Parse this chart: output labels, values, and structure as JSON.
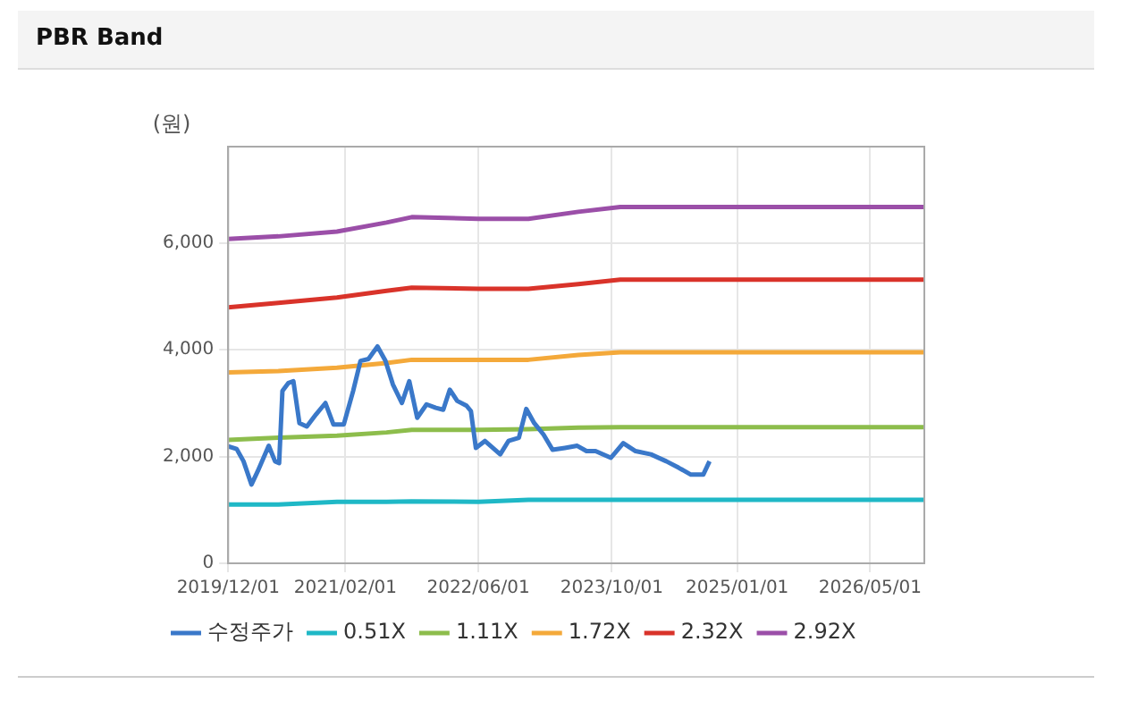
{
  "chart_data": {
    "type": "line",
    "title": "PBR Band",
    "ylabel": "(원)",
    "xlim": [
      "2019-12-01",
      "2026-11-15"
    ],
    "ylim": [
      0,
      7800
    ],
    "xticks": [
      {
        "value": "2019-12-01",
        "label": "2019/12/01"
      },
      {
        "value": "2021-02-01",
        "label": "2021/02/01"
      },
      {
        "value": "2022-06-01",
        "label": "2022/06/01"
      },
      {
        "value": "2023-10-01",
        "label": "2023/10/01"
      },
      {
        "value": "2025-01-01",
        "label": "2025/01/01"
      },
      {
        "value": "2026-05-01",
        "label": "2026/05/01"
      }
    ],
    "yticks": [
      0,
      {
        "value": 2000,
        "label": "2,000"
      },
      {
        "value": 4000,
        "label": "4,000"
      },
      {
        "value": 6000,
        "label": "6,000"
      }
    ],
    "grid": true,
    "legend": "bottom",
    "marker": "none",
    "line_style": "solid",
    "series": [
      {
        "name": "수정주가",
        "color": "#3a78c9",
        "x": [
          "2019-12-01",
          "2020-01-01",
          "2020-01-26",
          "2020-02-24",
          "2020-03-18",
          "2020-04-27",
          "2020-05-20",
          "2020-06-04",
          "2020-06-16",
          "2020-07-08",
          "2020-07-26",
          "2020-08-17",
          "2020-09-13",
          "2020-10-17",
          "2020-11-20",
          "2020-12-19",
          "2021-01-26",
          "2021-03-01",
          "2021-03-28",
          "2021-04-26",
          "2021-05-29",
          "2021-06-27",
          "2021-07-24",
          "2021-08-26",
          "2021-09-22",
          "2021-10-21",
          "2021-11-24",
          "2021-12-28",
          "2022-01-24",
          "2022-02-17",
          "2022-03-16",
          "2022-04-19",
          "2022-05-05",
          "2022-05-23",
          "2022-06-25",
          "2022-08-20",
          "2022-09-19",
          "2022-10-27",
          "2022-11-23",
          "2022-12-22",
          "2023-01-25",
          "2023-02-27",
          "2023-04-13",
          "2023-05-28",
          "2023-07-01",
          "2023-08-03",
          "2023-09-28",
          "2023-11-12",
          "2023-12-27",
          "2024-02-21",
          "2024-04-17",
          "2024-06-01",
          "2024-07-16",
          "2024-08-30",
          "2024-09-22"
        ],
        "values": [
          2190,
          2140,
          1910,
          1475,
          1725,
          2200,
          1910,
          1875,
          3225,
          3375,
          3410,
          2625,
          2560,
          2790,
          3000,
          2600,
          2600,
          3225,
          3790,
          3825,
          4060,
          3790,
          3350,
          3000,
          3410,
          2725,
          2975,
          2910,
          2875,
          3250,
          3040,
          2950,
          2850,
          2160,
          2290,
          2040,
          2290,
          2350,
          2890,
          2625,
          2410,
          2125,
          2160,
          2200,
          2100,
          2100,
          1975,
          2250,
          2100,
          2040,
          1910,
          1790,
          1660,
          1660,
          1910
        ]
      },
      {
        "name": "0.51X",
        "color": "#1fb8c6",
        "x": [
          "2019-12-01",
          "2020-06-01",
          "2021-01-01",
          "2021-07-01",
          "2021-10-01",
          "2022-06-01",
          "2022-12-01",
          "2023-06-01",
          "2023-11-01",
          "2026-11-15"
        ],
        "values": [
          1100,
          1100,
          1150,
          1150,
          1160,
          1150,
          1190,
          1190,
          1190,
          1190
        ]
      },
      {
        "name": "1.11X",
        "color": "#8dbd4c",
        "x": [
          "2019-12-01",
          "2020-06-01",
          "2021-01-01",
          "2021-07-01",
          "2021-10-01",
          "2022-06-01",
          "2022-12-01",
          "2023-06-01",
          "2023-11-01",
          "2026-11-15"
        ],
        "values": [
          2310,
          2350,
          2390,
          2450,
          2500,
          2500,
          2510,
          2540,
          2550,
          2550
        ]
      },
      {
        "name": "1.72X",
        "color": "#f4a93a",
        "x": [
          "2019-12-01",
          "2020-06-01",
          "2021-01-01",
          "2021-07-01",
          "2021-10-01",
          "2022-06-01",
          "2022-12-01",
          "2023-06-01",
          "2023-11-01",
          "2026-11-15"
        ],
        "values": [
          3575,
          3600,
          3660,
          3750,
          3810,
          3810,
          3810,
          3900,
          3950,
          3950
        ]
      },
      {
        "name": "2.32X",
        "color": "#d9332a",
        "x": [
          "2019-12-01",
          "2020-06-01",
          "2021-01-01",
          "2021-07-01",
          "2021-10-01",
          "2022-06-01",
          "2022-12-01",
          "2023-06-01",
          "2023-11-01",
          "2026-11-15"
        ],
        "values": [
          4790,
          4875,
          4975,
          5100,
          5160,
          5140,
          5140,
          5225,
          5310,
          5310
        ]
      },
      {
        "name": "2.92X",
        "color": "#9b4fa8",
        "x": [
          "2019-12-01",
          "2020-06-01",
          "2021-01-01",
          "2021-07-01",
          "2021-10-01",
          "2022-06-01",
          "2022-12-01",
          "2023-06-01",
          "2023-11-01",
          "2026-11-15"
        ],
        "values": [
          6070,
          6120,
          6210,
          6380,
          6480,
          6450,
          6450,
          6580,
          6670,
          6670
        ]
      }
    ]
  }
}
